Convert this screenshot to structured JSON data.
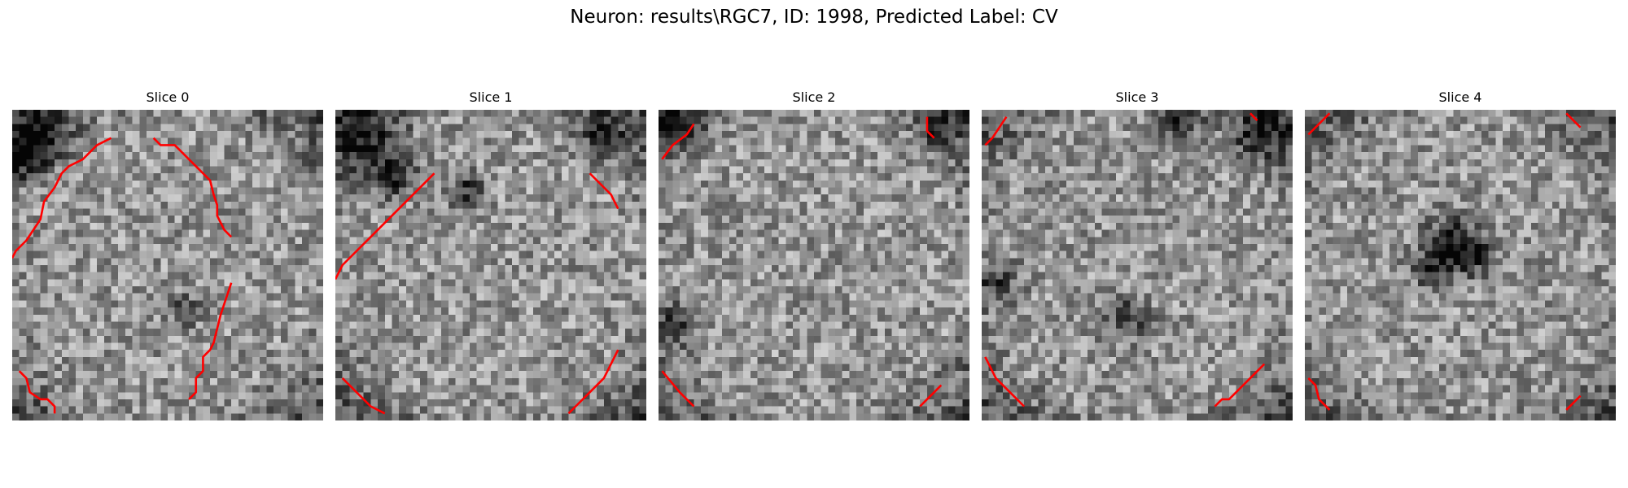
{
  "figure": {
    "title": "Neuron: results\\RGC7, ID: 1998, Predicted Label: CV"
  },
  "colors": {
    "contour": "#ff0000",
    "background": "#ffffff"
  },
  "slices": [
    {
      "title": "Slice 0",
      "dark_regions": [
        [
          4,
          3,
          4.5
        ],
        [
          1,
          6,
          3
        ],
        [
          24,
          28,
          2
        ]
      ],
      "contours": [
        [
          [
            0,
            21
          ],
          [
            0.5,
            20
          ],
          [
            2,
            18.5
          ],
          [
            3,
            17
          ],
          [
            4,
            15.5
          ],
          [
            4.5,
            13
          ],
          [
            6,
            11
          ],
          [
            7,
            9
          ],
          [
            8,
            8
          ],
          [
            9,
            7.5
          ],
          [
            10,
            7
          ],
          [
            11,
            6
          ],
          [
            12,
            5
          ],
          [
            13,
            4.5
          ],
          [
            14,
            4
          ]
        ],
        [
          [
            20,
            4
          ],
          [
            21,
            5
          ],
          [
            23,
            5
          ],
          [
            24,
            6
          ],
          [
            25,
            7
          ],
          [
            26,
            8
          ],
          [
            27,
            9
          ],
          [
            28,
            10
          ],
          [
            28.5,
            12
          ],
          [
            29,
            13.5
          ],
          [
            29,
            15
          ],
          [
            30,
            17
          ],
          [
            31,
            18
          ]
        ],
        [
          [
            31,
            24.5
          ],
          [
            30.5,
            26
          ],
          [
            30,
            27.5
          ],
          [
            29.5,
            29
          ],
          [
            29,
            31
          ],
          [
            28.5,
            33
          ],
          [
            28,
            34
          ],
          [
            27,
            35
          ],
          [
            27,
            37
          ],
          [
            26,
            38
          ],
          [
            26,
            40
          ],
          [
            25,
            41
          ]
        ],
        [
          [
            1,
            37
          ],
          [
            2,
            38
          ],
          [
            2.5,
            40
          ],
          [
            4,
            41
          ],
          [
            5,
            41
          ],
          [
            6,
            42
          ],
          [
            6,
            43
          ]
        ]
      ]
    },
    {
      "title": "Slice 1",
      "dark_regions": [
        [
          4,
          4,
          5
        ],
        [
          8,
          9,
          3
        ],
        [
          18,
          11,
          2.5
        ],
        [
          37,
          3,
          3
        ]
      ],
      "contours": [
        [
          [
            0,
            24
          ],
          [
            1,
            22
          ],
          [
            3,
            20
          ],
          [
            5,
            18
          ],
          [
            7,
            16
          ],
          [
            9,
            14
          ],
          [
            11,
            12
          ],
          [
            13,
            10
          ],
          [
            14,
            9
          ]
        ],
        [
          [
            36,
            9
          ],
          [
            38,
            11
          ],
          [
            39,
            12
          ],
          [
            40,
            14
          ]
        ],
        [
          [
            40,
            34
          ],
          [
            39,
            36
          ],
          [
            38,
            38
          ],
          [
            36,
            40
          ],
          [
            34,
            42
          ],
          [
            33,
            43
          ]
        ],
        [
          [
            1,
            38
          ],
          [
            2,
            39
          ],
          [
            3,
            40
          ],
          [
            4,
            41
          ],
          [
            5,
            42
          ],
          [
            7,
            43
          ]
        ]
      ]
    },
    {
      "title": "Slice 2",
      "dark_regions": [
        [
          1.5,
          1.5,
          3.5
        ],
        [
          39,
          1.5,
          2.5
        ],
        [
          2,
          30,
          3
        ]
      ],
      "contours": [
        [
          [
            0.5,
            7
          ],
          [
            2,
            5
          ],
          [
            4,
            3.5
          ],
          [
            5,
            2
          ]
        ],
        [
          [
            38,
            1
          ],
          [
            38,
            3
          ],
          [
            39,
            4
          ]
        ],
        [
          [
            0.5,
            37
          ],
          [
            3,
            40
          ],
          [
            5,
            42
          ]
        ],
        [
          [
            37,
            42
          ],
          [
            38,
            41
          ],
          [
            39,
            40
          ],
          [
            40,
            39
          ]
        ]
      ]
    },
    {
      "title": "Slice 3",
      "dark_regions": [
        [
          39,
          3,
          4
        ],
        [
          28,
          1,
          3
        ],
        [
          1.5,
          24,
          3
        ],
        [
          20,
          29,
          3
        ]
      ],
      "contours": [
        [
          [
            0.5,
            5
          ],
          [
            1.5,
            4
          ],
          [
            2.5,
            2.5
          ],
          [
            3.5,
            1
          ]
        ],
        [
          [
            38,
            0.5
          ],
          [
            39,
            1.5
          ]
        ],
        [
          [
            0.5,
            35
          ],
          [
            1,
            36
          ],
          [
            2,
            38
          ],
          [
            4,
            40
          ],
          [
            6,
            42
          ]
        ],
        [
          [
            33,
            42
          ],
          [
            34,
            41
          ],
          [
            35,
            41
          ],
          [
            36,
            40
          ],
          [
            38,
            38
          ],
          [
            40,
            36
          ]
        ]
      ]
    },
    {
      "title": "Slice 4",
      "dark_regions": [
        [
          20,
          18,
          3.5
        ],
        [
          23,
          20,
          3.5
        ],
        [
          17,
          22,
          2.5
        ]
      ],
      "contours": [
        [
          [
            0.5,
            3.5
          ],
          [
            2,
            2
          ],
          [
            3.5,
            0.5
          ]
        ],
        [
          [
            37,
            0.5
          ],
          [
            39,
            2.5
          ]
        ],
        [
          [
            0.5,
            38
          ],
          [
            1.5,
            39
          ],
          [
            2,
            41
          ],
          [
            3.5,
            42.5
          ]
        ],
        [
          [
            37,
            42.5
          ],
          [
            39,
            40.5
          ]
        ]
      ]
    }
  ]
}
